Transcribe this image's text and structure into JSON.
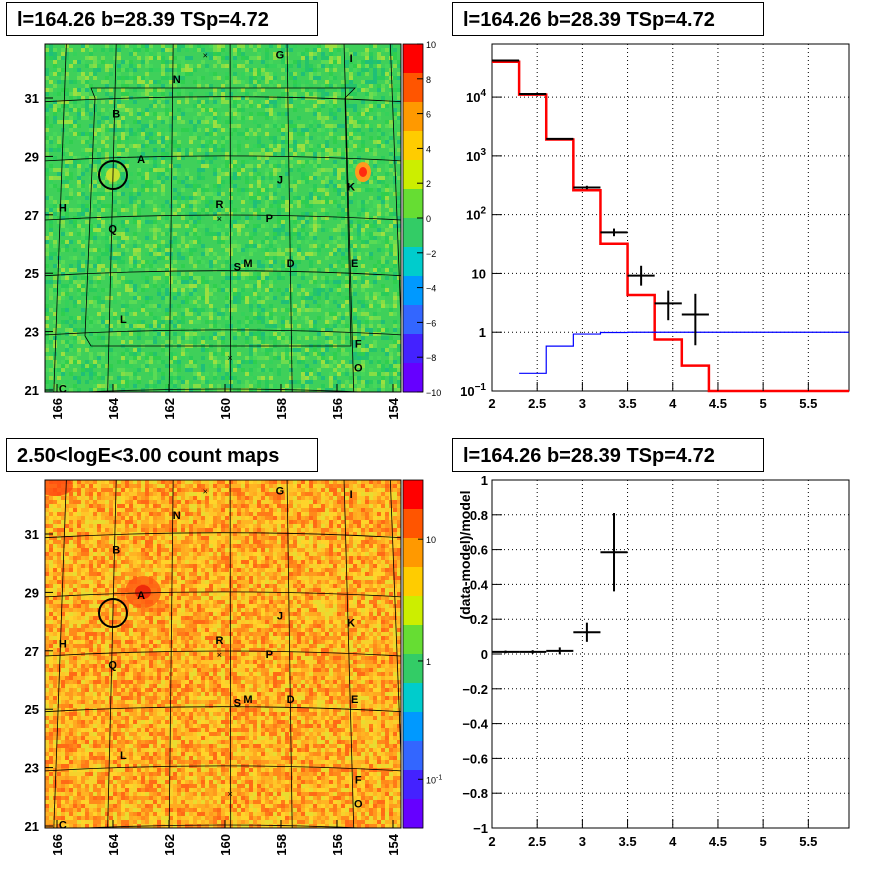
{
  "panels": {
    "tl_title": "l=164.26 b=28.39 TSp=4.72",
    "tr_title": "l=164.26 b=28.39 TSp=4.72",
    "bl_title": "2.50<logE<3.00 count maps",
    "br_title": "l=164.26 b=28.39 TSp=4.72"
  },
  "chart_data": [
    {
      "type": "heatmap",
      "panel": "residual significance map",
      "x_ticks": [
        "166",
        "164",
        "162",
        "160",
        "158",
        "156",
        "154"
      ],
      "y_ticks": [
        "31",
        "29",
        "27",
        "25",
        "23",
        "21"
      ],
      "colorbar": {
        "min": -10,
        "max": 10,
        "ticks": [
          "10",
          "8",
          "6",
          "4",
          "2",
          "0",
          "−2",
          "−4",
          "−6",
          "−8",
          "−10"
        ]
      },
      "colors": {
        "background": "#3fd05a"
      },
      "source_labels": [
        "G",
        "I",
        "N",
        "B",
        "A",
        "J",
        "K",
        "H",
        "R",
        "P",
        "Q",
        "S",
        "M",
        "D",
        "E",
        "L",
        "F",
        "O",
        "C"
      ]
    },
    {
      "type": "line",
      "panel": "energy spectrum",
      "x_ticks": [
        "2",
        "2.5",
        "3",
        "3.5",
        "4",
        "4.5",
        "5",
        "5.5"
      ],
      "y_ticks": [
        "10^-1",
        "1",
        "10",
        "10^2",
        "10^3",
        "10^4"
      ],
      "y_scale": "log",
      "xlim": [
        2,
        5.95
      ],
      "ylim": [
        0.1,
        80000
      ],
      "grid": true,
      "series": [
        {
          "color": "#ff0000",
          "bins": [
            [
              2.0,
              2.3,
              40000
            ],
            [
              2.3,
              2.6,
              11000
            ],
            [
              2.6,
              2.9,
              1900
            ],
            [
              2.9,
              3.2,
              260
            ],
            [
              3.2,
              3.5,
              32
            ],
            [
              3.5,
              3.8,
              4.3
            ],
            [
              3.8,
              4.1,
              0.75
            ],
            [
              4.1,
              4.4,
              0.27
            ],
            [
              4.4,
              5.95,
              0.1
            ]
          ]
        },
        {
          "color": "#0000ff",
          "bins": [
            [
              2.3,
              2.6,
              0.2
            ],
            [
              2.6,
              2.9,
              0.58
            ],
            [
              2.9,
              3.2,
              0.93
            ],
            [
              3.2,
              3.5,
              0.99
            ],
            [
              3.5,
              5.95,
              1.0
            ]
          ]
        }
      ],
      "points": [
        {
          "x": 2.15,
          "xerr": 0.15,
          "y": 42000,
          "ylo": 41500,
          "yhi": 42500
        },
        {
          "x": 2.45,
          "xerr": 0.15,
          "y": 11300,
          "ylo": 11100,
          "yhi": 11500
        },
        {
          "x": 2.75,
          "xerr": 0.15,
          "y": 1950,
          "ylo": 1900,
          "yhi": 2000
        },
        {
          "x": 3.05,
          "xerr": 0.15,
          "y": 290,
          "ylo": 270,
          "yhi": 310
        },
        {
          "x": 3.35,
          "xerr": 0.15,
          "y": 50,
          "ylo": 43,
          "yhi": 58
        },
        {
          "x": 3.65,
          "xerr": 0.15,
          "y": 9.2,
          "ylo": 6.2,
          "yhi": 13.5
        },
        {
          "x": 3.95,
          "xerr": 0.15,
          "y": 3.1,
          "ylo": 1.6,
          "yhi": 5.1
        },
        {
          "x": 4.25,
          "xerr": 0.15,
          "y": 2.0,
          "ylo": 0.6,
          "yhi": 4.5
        }
      ]
    },
    {
      "type": "heatmap",
      "panel": "2.50<logE<3.00 count map",
      "x_ticks": [
        "166",
        "164",
        "162",
        "160",
        "158",
        "156",
        "154"
      ],
      "y_ticks": [
        "31",
        "29",
        "27",
        "25",
        "23",
        "21"
      ],
      "colorbar": {
        "scale": "log",
        "ticks": [
          "10",
          "1",
          "10^-1"
        ]
      },
      "colors": {
        "background": "#ffa51e"
      },
      "source_labels": [
        "G",
        "I",
        "N",
        "B",
        "A",
        "J",
        "K",
        "H",
        "R",
        "P",
        "Q",
        "S",
        "M",
        "D",
        "E",
        "L",
        "F",
        "O",
        "C"
      ]
    },
    {
      "type": "scatter",
      "panel": "residual",
      "ylabel": "(data-model)/model",
      "x_ticks": [
        "2",
        "2.5",
        "3",
        "3.5",
        "4",
        "4.5",
        "5",
        "5.5"
      ],
      "y_ticks": [
        "1",
        "0.8",
        "0.6",
        "0.4",
        "0.2",
        "0",
        "−0.2",
        "−0.4",
        "−0.6",
        "−0.8",
        "−1"
      ],
      "xlim": [
        2,
        5.95
      ],
      "ylim": [
        -1,
        1
      ],
      "grid": true,
      "points": [
        {
          "x": 2.15,
          "xerr": 0.15,
          "y": 0.012,
          "yerr": 0.008
        },
        {
          "x": 2.45,
          "xerr": 0.15,
          "y": 0.012,
          "yerr": 0.01
        },
        {
          "x": 2.75,
          "xerr": 0.15,
          "y": 0.018,
          "yerr": 0.02
        },
        {
          "x": 3.05,
          "xerr": 0.15,
          "y": 0.125,
          "yerr": 0.055
        },
        {
          "x": 3.35,
          "xerr": 0.15,
          "y": 0.585,
          "yerr": 0.225
        }
      ]
    }
  ]
}
